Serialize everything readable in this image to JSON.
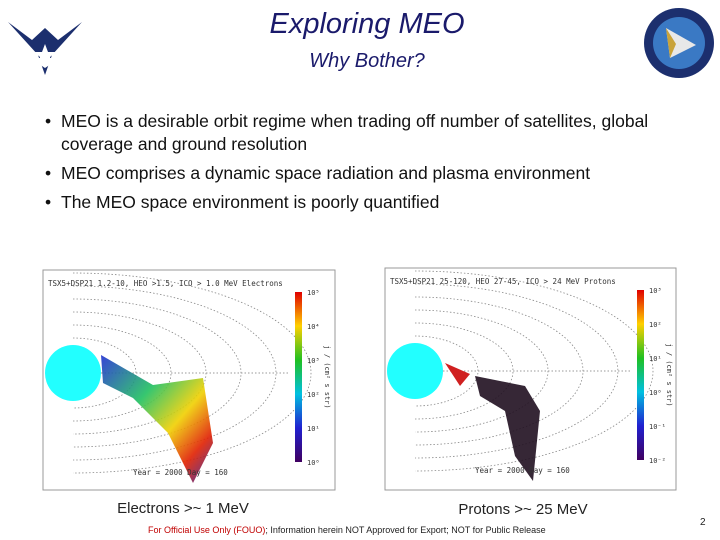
{
  "header": {
    "title": "Exploring MEO",
    "subtitle": "Why Bother?"
  },
  "bullets": [
    "MEO is a desirable orbit regime when trading off number of satellites, global coverage and ground resolution",
    "MEO comprises a dynamic space radiation and plasma environment",
    "The MEO space environment is poorly quantified"
  ],
  "figures": [
    {
      "heading": "TSX5+DSP21 1.2-10, HEO >1.5, ICO > 1.0 MeV Electrons",
      "date": "Year = 2000 Day = 160",
      "colorbar_label": "j / (cm² s str)",
      "colorbar_ticks": [
        "10⁵",
        "10⁴",
        "10³",
        "10²",
        "10¹",
        "10⁰"
      ],
      "caption": "Electrons >~ 1 MeV"
    },
    {
      "heading": "TSX5+DSP21 25-120, HEO 27-45, ICO > 24 MeV Protons",
      "date": "Year = 2000 Day = 160",
      "colorbar_label": "j / (cm² s str)",
      "colorbar_ticks": [
        "10³",
        "10²",
        "10¹",
        "10⁰",
        "10⁻¹",
        "10⁻²"
      ],
      "caption": "Protons >~ 25 MeV"
    }
  ],
  "footer": {
    "notice": "For Official Use Only (FOUO)",
    "text": "; Information herein NOT Approved for Export; NOT for Public Release",
    "page": "2"
  }
}
